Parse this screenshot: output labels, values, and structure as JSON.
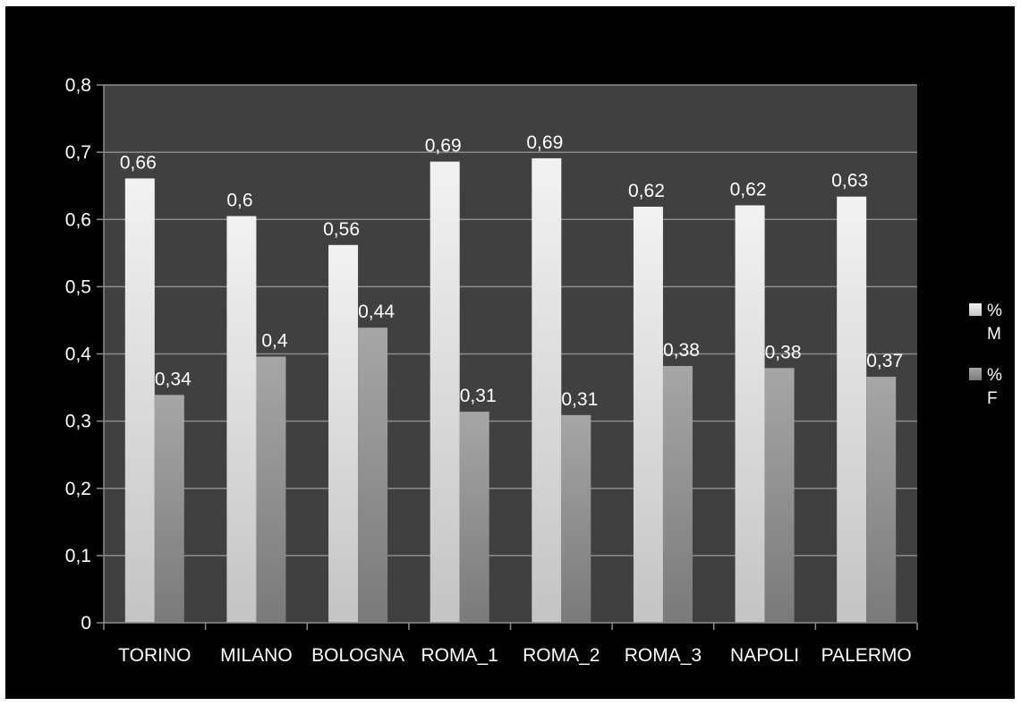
{
  "chart_data": {
    "type": "bar",
    "categories": [
      "TORINO",
      "MILANO",
      "BOLOGNA",
      "ROMA_1",
      "ROMA_2",
      "ROMA_3",
      "NAPOLI",
      "PALERMO"
    ],
    "series": [
      {
        "name": "% M",
        "values": [
          0.661,
          0.605,
          0.562,
          0.686,
          0.691,
          0.619,
          0.621,
          0.634
        ],
        "labels": [
          "0,66",
          "0,6",
          "0,56",
          "0,69",
          "0,69",
          "0,62",
          "0,62",
          "0,63"
        ],
        "color": "#e8e8e8"
      },
      {
        "name": "% F",
        "values": [
          0.339,
          0.396,
          0.439,
          0.314,
          0.309,
          0.382,
          0.379,
          0.366
        ],
        "labels": [
          "0,34",
          "0,4",
          "0,44",
          "0,31",
          "0,31",
          "0,38",
          "0,38",
          "0,37"
        ],
        "color": "#9a9a9a"
      }
    ],
    "ylim": [
      0,
      0.8
    ],
    "yticks": [
      0,
      0.1,
      0.2,
      0.3,
      0.4,
      0.5,
      0.6,
      0.7,
      0.8
    ],
    "ytick_labels": [
      "0",
      "0,1",
      "0,2",
      "0,3",
      "0,4",
      "0,5",
      "0,6",
      "0,7",
      "0,8"
    ],
    "title": "",
    "xlabel": "",
    "ylabel": "",
    "grid": true,
    "legend": {
      "position": "right",
      "items": [
        {
          "line1": "%",
          "line2": "M",
          "color": "#e8e8e8"
        },
        {
          "line1": "%",
          "line2": "F",
          "color": "#9a9a9a"
        }
      ]
    },
    "colors": {
      "background": "#000000",
      "plot_area": "#404040",
      "gridline": "#8c8c8c",
      "axis": "#8c8c8c",
      "text": "#ffffff"
    }
  }
}
